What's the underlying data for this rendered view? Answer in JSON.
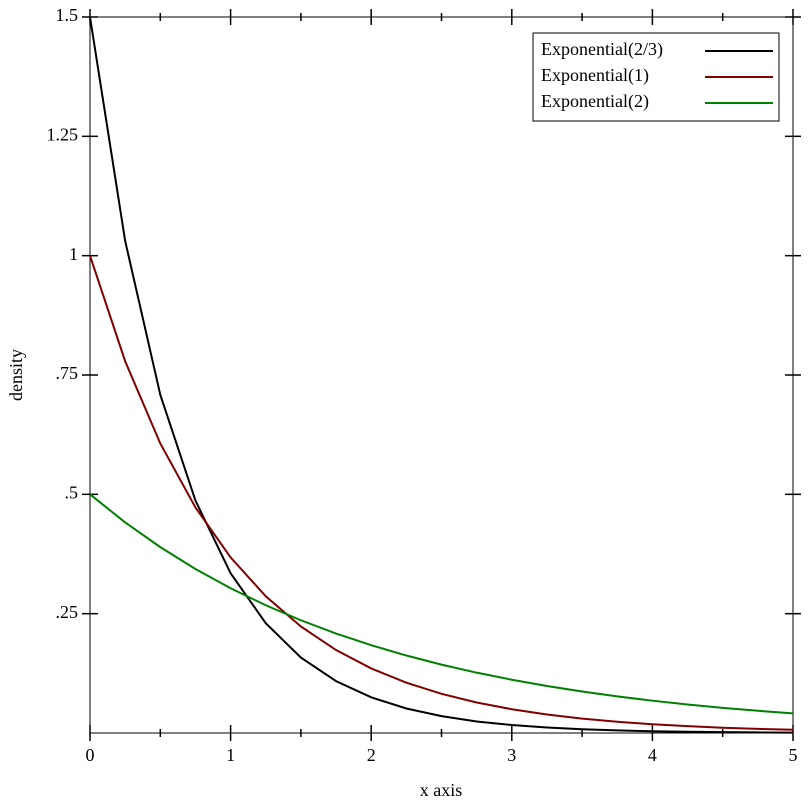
{
  "chart_data": {
    "type": "line",
    "x_label": "x axis",
    "y_label": "density",
    "x": [
      0,
      0.25,
      0.5,
      0.75,
      1,
      1.25,
      1.5,
      1.75,
      2,
      2.25,
      2.5,
      2.75,
      3,
      3.25,
      3.5,
      3.75,
      4,
      4.25,
      4.5,
      4.75,
      5
    ],
    "series": [
      {
        "name": "Exponential(2/3)",
        "color": "#000000",
        "values": [
          1.5,
          1.031,
          0.7085,
          0.487,
          0.3347,
          0.23,
          0.1581,
          0.1087,
          0.0747,
          0.0513,
          0.0353,
          0.0242,
          0.0167,
          0.0115,
          0.0079,
          0.0054,
          0.0037,
          0.0026,
          0.0018,
          0.0012,
          0.0008
        ]
      },
      {
        "name": "Exponential(1)",
        "color": "#800000",
        "values": [
          1,
          0.7788,
          0.6065,
          0.4724,
          0.3679,
          0.2865,
          0.2231,
          0.1738,
          0.1353,
          0.1054,
          0.0821,
          0.0639,
          0.0498,
          0.0388,
          0.0302,
          0.0235,
          0.0183,
          0.0143,
          0.0111,
          0.0087,
          0.0067
        ]
      },
      {
        "name": "Exponential(2)",
        "color": "#008000",
        "values": [
          0.5,
          0.4412,
          0.3894,
          0.3436,
          0.3033,
          0.2676,
          0.2362,
          0.2084,
          0.1839,
          0.1623,
          0.1433,
          0.1264,
          0.1116,
          0.0985,
          0.0869,
          0.0767,
          0.0677,
          0.0597,
          0.0527,
          0.0465,
          0.041
        ]
      }
    ],
    "xlim": [
      0,
      5
    ],
    "ylim": [
      0,
      1.5
    ],
    "xticks": [
      0,
      1,
      2,
      3,
      4,
      5
    ],
    "xminorticks": [
      0.5,
      1.5,
      2.5,
      3.5,
      4.5
    ],
    "yticks": [
      {
        "value": 0.25,
        "label": ".25"
      },
      {
        "value": 0.5,
        "label": ".5"
      },
      {
        "value": 0.75,
        "label": ".75"
      },
      1,
      1.25,
      1.5
    ],
    "legend": "top-right"
  }
}
